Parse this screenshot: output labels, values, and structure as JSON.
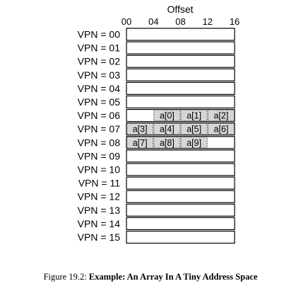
{
  "header": {
    "title": "Offset",
    "offsets": [
      "00",
      "04",
      "08",
      "12",
      "16"
    ]
  },
  "rows": [
    {
      "label": "VPN = 00"
    },
    {
      "label": "VPN = 01"
    },
    {
      "label": "VPN = 02"
    },
    {
      "label": "VPN = 03"
    },
    {
      "label": "VPN = 04"
    },
    {
      "label": "VPN = 05"
    },
    {
      "label": "VPN = 06"
    },
    {
      "label": "VPN = 07"
    },
    {
      "label": "VPN = 08"
    },
    {
      "label": "VPN = 09"
    },
    {
      "label": "VPN = 10"
    },
    {
      "label": "VPN = 11"
    },
    {
      "label": "VPN = 12"
    },
    {
      "label": "VPN = 13"
    },
    {
      "label": "VPN = 14"
    },
    {
      "label": "VPN = 15"
    }
  ],
  "array_elements": [
    {
      "label": "a[0]",
      "vpn": 6,
      "slot": 1
    },
    {
      "label": "a[1]",
      "vpn": 6,
      "slot": 2
    },
    {
      "label": "a[2]",
      "vpn": 6,
      "slot": 3
    },
    {
      "label": "a[3]",
      "vpn": 7,
      "slot": 0
    },
    {
      "label": "a[4]",
      "vpn": 7,
      "slot": 1
    },
    {
      "label": "a[5]",
      "vpn": 7,
      "slot": 2
    },
    {
      "label": "a[6]",
      "vpn": 7,
      "slot": 3
    },
    {
      "label": "a[7]",
      "vpn": 8,
      "slot": 0
    },
    {
      "label": "a[8]",
      "vpn": 8,
      "slot": 1
    },
    {
      "label": "a[9]",
      "vpn": 8,
      "slot": 2
    }
  ],
  "colors": {
    "cell_fill": "#d6d6d6",
    "stroke": "#000000"
  },
  "caption": {
    "figure": "Figure 19.2:",
    "text": "Example: An Array In A Tiny Address Space"
  }
}
